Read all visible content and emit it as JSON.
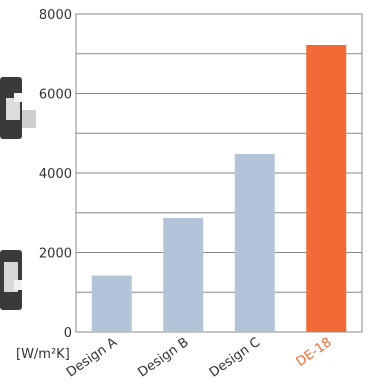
{
  "chart_data": {
    "type": "bar",
    "title": "",
    "xlabel": "",
    "ylabel": "[W/m²K]",
    "categories": [
      "Design A",
      "Design B",
      "Design C",
      "DE-18"
    ],
    "values": [
      1420,
      2870,
      4480,
      7220
    ],
    "ylim": [
      0,
      8000
    ],
    "yticks": [
      0,
      2000,
      4000,
      6000,
      8000
    ],
    "grid": true,
    "grid_step": 1000,
    "bar_colors": [
      "#b3c4d9",
      "#b3c4d9",
      "#b3c4d9",
      "#f26a35"
    ],
    "label_colors": [
      "#333333",
      "#333333",
      "#333333",
      "#f26a35"
    ],
    "grid_color": "#888888",
    "decor_color": "#3a3a3a"
  }
}
